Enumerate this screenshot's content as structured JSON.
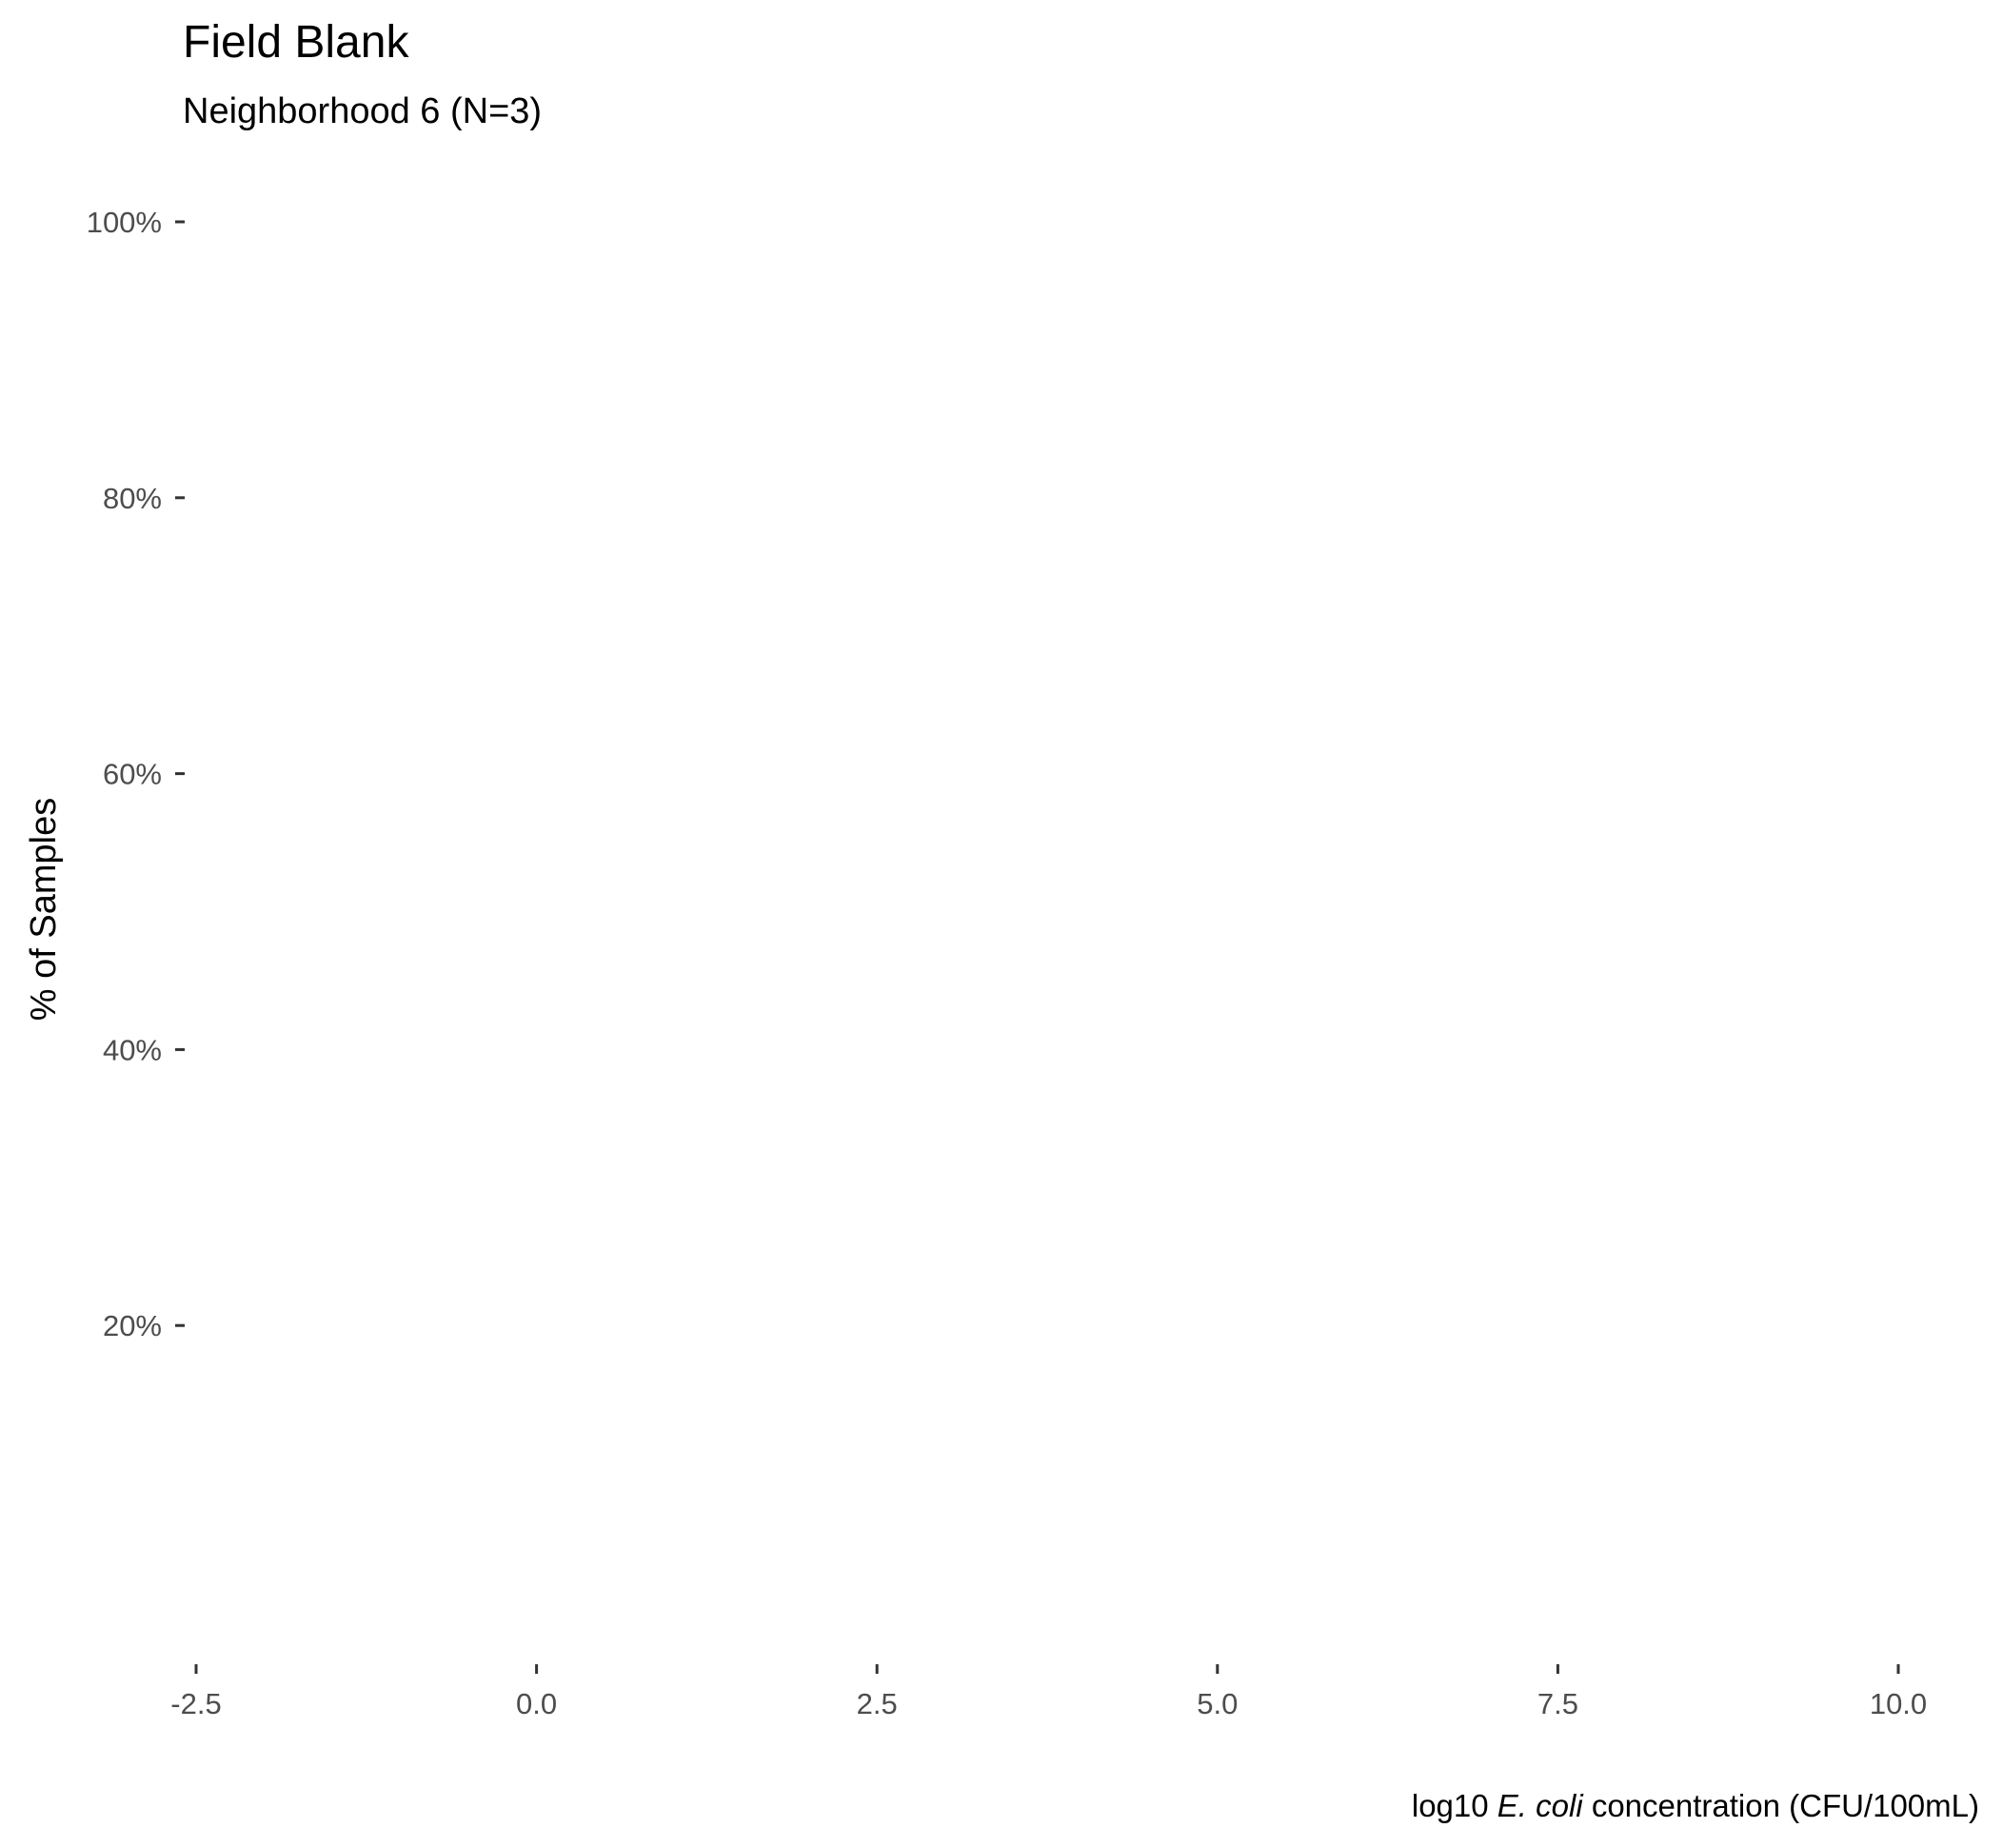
{
  "chart_data": {
    "type": "scatter",
    "title": "Field Blank",
    "subtitle": "Neighborhood 6 (N=3)",
    "xlabel": {
      "prefix": "log10 ",
      "italic": "E. coli",
      "suffix": " concentration (CFU/100mL)"
    },
    "ylabel": "% of Samples",
    "xlim": [
      -2.5,
      10.0
    ],
    "ylim": [
      0,
      100
    ],
    "x_ticks": [
      {
        "value": -2.5,
        "label": "-2.5"
      },
      {
        "value": 0.0,
        "label": "0.0"
      },
      {
        "value": 2.5,
        "label": "2.5"
      },
      {
        "value": 5.0,
        "label": "5.0"
      },
      {
        "value": 7.5,
        "label": "7.5"
      },
      {
        "value": 10.0,
        "label": "10.0"
      }
    ],
    "y_ticks": [
      {
        "value": 20,
        "label": "20%"
      },
      {
        "value": 40,
        "label": "40%"
      },
      {
        "value": 60,
        "label": "60%"
      },
      {
        "value": 80,
        "label": "80%"
      },
      {
        "value": 100,
        "label": "100%"
      }
    ],
    "series": [],
    "grid": false,
    "legend": "none"
  }
}
